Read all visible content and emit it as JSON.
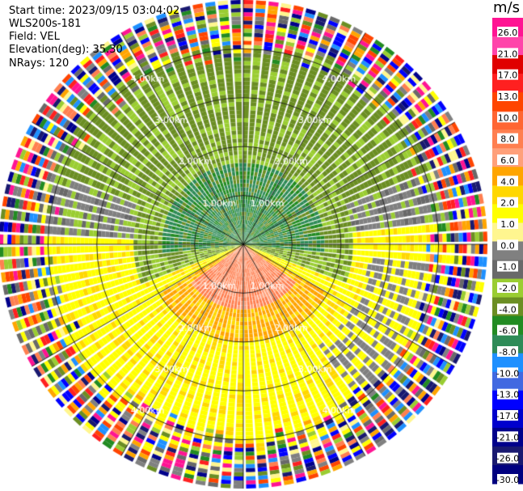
{
  "header": {
    "start_time": "Start time: 2023/09/15 03:04:02",
    "instrument": "WLS200s-181",
    "field": "Field: VEL",
    "elevation": "Elevation(deg): 35.30",
    "nrays": "NRays: 120"
  },
  "colorbar": {
    "unit": "m/s",
    "ticks": [
      "26.0",
      "21.0",
      "17.0",
      "13.0",
      "10.0",
      "8.0",
      "6.0",
      "4.0",
      "2.0",
      "1.0",
      "0.0",
      "-1.0",
      "-2.0",
      "-4.0",
      "-6.0",
      "-8.0",
      "-10.0",
      "-13.0",
      "-17.0",
      "-21.0",
      "-26.0",
      "-30.0"
    ],
    "colors": [
      "#ff1493",
      "#ff44aa",
      "#e00000",
      "#ff2020",
      "#ff4500",
      "#ff6633",
      "#ff7f50",
      "#ffa07a",
      "#ffa500",
      "#ffd700",
      "#ffff00",
      "#fff68f",
      "#808080",
      "#696969",
      "#9acd32",
      "#6b8e23",
      "#228b22",
      "#2e8b57",
      "#1e90ff",
      "#4169e1",
      "#0000ff",
      "#0000cd",
      "#00008b",
      "#191970",
      "#000080"
    ]
  },
  "chart_data": {
    "type": "heatmap",
    "projection": "polar PPI",
    "field": "VEL",
    "units": "m/s",
    "n_rays": 120,
    "range_rings_km": [
      1.0,
      2.0,
      3.0,
      4.0
    ],
    "range_labels": [
      "1.00km",
      "2.00km",
      "3.00km",
      "4.00km"
    ],
    "radials": 12,
    "value_range": [
      -30.0,
      26.0
    ]
  }
}
